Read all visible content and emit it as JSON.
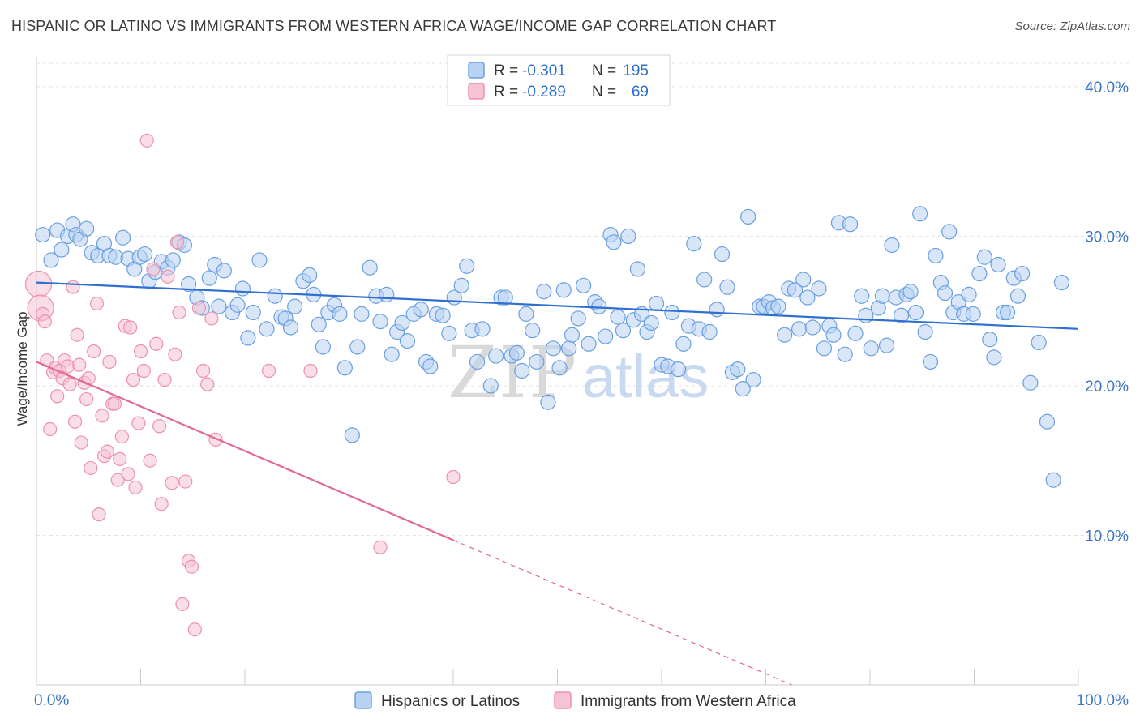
{
  "title": "HISPANIC OR LATINO VS IMMIGRANTS FROM WESTERN AFRICA WAGE/INCOME GAP CORRELATION CHART",
  "source": "Source: ZipAtlas.com",
  "watermark": {
    "zip": "ZIP",
    "atlas": "atlas"
  },
  "chart_data": {
    "type": "scatter",
    "title": "HISPANIC OR LATINO VS IMMIGRANTS FROM WESTERN AFRICA WAGE/INCOME GAP CORRELATION CHART",
    "xlabel": "",
    "ylabel": "Wage/Income Gap",
    "xlim": [
      0,
      100
    ],
    "ylim": [
      0,
      42
    ],
    "x_tick_labels": {
      "min": "0.0%",
      "max": "100.0%"
    },
    "y_ticks": [
      {
        "value": 10,
        "label": "10.0%"
      },
      {
        "value": 20,
        "label": "20.0%"
      },
      {
        "value": 30,
        "label": "30.0%"
      },
      {
        "value": 40,
        "label": "40.0%"
      }
    ],
    "grid": true,
    "legend_placement": "top-center",
    "legend": [
      {
        "r_label": "R =",
        "r_value": "-0.301",
        "n_label": "N =",
        "n_value": "195"
      },
      {
        "r_label": "R =",
        "r_value": "-0.289",
        "n_label": "N =",
        "n_value": "69"
      }
    ],
    "series": [
      {
        "name": "Hispanics or Latinos",
        "color": "#6aa0e0",
        "fill": "#b8d2f3",
        "trend_color": "#2f6fd0",
        "trend": {
          "x_start": 0,
          "y_start": 26.9,
          "x_end": 100,
          "y_end": 23.8,
          "dashed_from": null
        },
        "points": [
          [
            0.6,
            30.1
          ],
          [
            1.4,
            28.4
          ],
          [
            2.0,
            30.4
          ],
          [
            2.4,
            29.1
          ],
          [
            3.0,
            30.0
          ],
          [
            3.5,
            30.8
          ],
          [
            3.8,
            30.1
          ],
          [
            4.2,
            29.8
          ],
          [
            4.8,
            30.5
          ],
          [
            5.3,
            28.9
          ],
          [
            5.9,
            28.7
          ],
          [
            6.5,
            29.5
          ],
          [
            7.0,
            28.7
          ],
          [
            7.6,
            28.6
          ],
          [
            8.3,
            29.9
          ],
          [
            8.8,
            28.5
          ],
          [
            9.4,
            27.8
          ],
          [
            9.9,
            28.6
          ],
          [
            10.4,
            28.8
          ],
          [
            10.8,
            27.0
          ],
          [
            11.4,
            27.6
          ],
          [
            12.0,
            28.3
          ],
          [
            12.6,
            27.9
          ],
          [
            13.1,
            28.4
          ],
          [
            13.7,
            29.6
          ],
          [
            14.2,
            29.4
          ],
          [
            14.6,
            26.8
          ],
          [
            15.4,
            25.9
          ],
          [
            15.9,
            25.2
          ],
          [
            16.6,
            27.2
          ],
          [
            17.1,
            28.1
          ],
          [
            17.5,
            25.3
          ],
          [
            18.0,
            27.7
          ],
          [
            18.8,
            24.9
          ],
          [
            19.3,
            25.4
          ],
          [
            19.8,
            26.5
          ],
          [
            20.3,
            23.2
          ],
          [
            20.8,
            24.9
          ],
          [
            21.4,
            28.4
          ],
          [
            22.1,
            23.8
          ],
          [
            22.9,
            26.0
          ],
          [
            23.5,
            24.6
          ],
          [
            23.9,
            24.5
          ],
          [
            24.4,
            23.9
          ],
          [
            24.8,
            25.3
          ],
          [
            25.6,
            27.0
          ],
          [
            26.2,
            27.4
          ],
          [
            26.6,
            26.1
          ],
          [
            27.1,
            24.1
          ],
          [
            27.5,
            22.6
          ],
          [
            28.0,
            24.9
          ],
          [
            28.6,
            25.4
          ],
          [
            29.1,
            24.8
          ],
          [
            29.6,
            21.2
          ],
          [
            30.3,
            16.7
          ],
          [
            30.8,
            22.6
          ],
          [
            31.2,
            24.8
          ],
          [
            32.0,
            27.9
          ],
          [
            32.6,
            26.0
          ],
          [
            33.0,
            24.3
          ],
          [
            33.6,
            26.1
          ],
          [
            34.1,
            22.1
          ],
          [
            34.6,
            23.6
          ],
          [
            35.1,
            24.2
          ],
          [
            35.6,
            23.0
          ],
          [
            36.2,
            24.8
          ],
          [
            36.9,
            25.1
          ],
          [
            37.4,
            21.6
          ],
          [
            37.8,
            21.3
          ],
          [
            38.4,
            24.8
          ],
          [
            39.0,
            24.7
          ],
          [
            39.6,
            23.5
          ],
          [
            40.1,
            25.9
          ],
          [
            40.8,
            26.7
          ],
          [
            41.3,
            28.0
          ],
          [
            41.8,
            23.7
          ],
          [
            42.3,
            21.6
          ],
          [
            42.8,
            23.8
          ],
          [
            43.6,
            20.0
          ],
          [
            44.1,
            22.0
          ],
          [
            44.6,
            25.9
          ],
          [
            45.0,
            25.9
          ],
          [
            45.6,
            22.0
          ],
          [
            46.1,
            22.2
          ],
          [
            46.6,
            21.0
          ],
          [
            47.0,
            24.8
          ],
          [
            47.6,
            23.7
          ],
          [
            48.0,
            21.6
          ],
          [
            48.7,
            26.3
          ],
          [
            49.1,
            18.9
          ],
          [
            49.6,
            22.5
          ],
          [
            50.2,
            21.2
          ],
          [
            50.6,
            26.4
          ],
          [
            51.1,
            22.5
          ],
          [
            51.4,
            23.4
          ],
          [
            52.0,
            24.5
          ],
          [
            52.5,
            26.7
          ],
          [
            53.0,
            22.8
          ],
          [
            53.6,
            25.6
          ],
          [
            54.0,
            25.3
          ],
          [
            54.6,
            23.3
          ],
          [
            55.1,
            30.1
          ],
          [
            55.4,
            29.6
          ],
          [
            55.8,
            24.6
          ],
          [
            56.3,
            23.7
          ],
          [
            56.8,
            30.0
          ],
          [
            57.3,
            24.4
          ],
          [
            57.7,
            27.8
          ],
          [
            58.1,
            24.8
          ],
          [
            58.6,
            23.6
          ],
          [
            59.0,
            24.2
          ],
          [
            59.5,
            25.5
          ],
          [
            60.0,
            21.4
          ],
          [
            60.6,
            21.3
          ],
          [
            61.0,
            24.9
          ],
          [
            61.6,
            21.1
          ],
          [
            62.1,
            22.8
          ],
          [
            62.6,
            24.0
          ],
          [
            63.1,
            29.5
          ],
          [
            63.6,
            23.8
          ],
          [
            64.1,
            27.1
          ],
          [
            64.6,
            23.6
          ],
          [
            65.3,
            25.1
          ],
          [
            65.8,
            28.8
          ],
          [
            66.3,
            26.6
          ],
          [
            66.8,
            20.9
          ],
          [
            67.3,
            21.1
          ],
          [
            67.8,
            19.8
          ],
          [
            68.3,
            31.3
          ],
          [
            68.8,
            20.4
          ],
          [
            69.4,
            25.3
          ],
          [
            69.8,
            25.3
          ],
          [
            70.3,
            25.6
          ],
          [
            70.7,
            25.2
          ],
          [
            71.2,
            25.3
          ],
          [
            71.8,
            23.4
          ],
          [
            72.2,
            26.5
          ],
          [
            72.8,
            26.4
          ],
          [
            73.2,
            23.8
          ],
          [
            73.6,
            27.1
          ],
          [
            74.0,
            25.9
          ],
          [
            74.5,
            23.9
          ],
          [
            75.1,
            26.5
          ],
          [
            75.6,
            22.5
          ],
          [
            76.1,
            24.0
          ],
          [
            76.5,
            23.4
          ],
          [
            77.0,
            30.9
          ],
          [
            77.6,
            22.1
          ],
          [
            78.1,
            30.8
          ],
          [
            78.6,
            23.5
          ],
          [
            79.2,
            26.0
          ],
          [
            79.6,
            24.7
          ],
          [
            80.1,
            22.5
          ],
          [
            80.8,
            25.2
          ],
          [
            81.2,
            26.0
          ],
          [
            81.6,
            22.7
          ],
          [
            82.1,
            29.4
          ],
          [
            82.5,
            25.9
          ],
          [
            83.0,
            24.7
          ],
          [
            83.5,
            26.1
          ],
          [
            83.9,
            26.3
          ],
          [
            84.4,
            24.9
          ],
          [
            84.8,
            31.5
          ],
          [
            85.3,
            23.6
          ],
          [
            85.8,
            21.6
          ],
          [
            86.3,
            28.7
          ],
          [
            86.8,
            26.9
          ],
          [
            87.2,
            26.2
          ],
          [
            87.6,
            30.3
          ],
          [
            88.0,
            24.9
          ],
          [
            88.5,
            25.6
          ],
          [
            89.0,
            24.8
          ],
          [
            89.5,
            26.1
          ],
          [
            89.9,
            24.8
          ],
          [
            90.5,
            27.5
          ],
          [
            91.0,
            28.6
          ],
          [
            91.5,
            23.1
          ],
          [
            91.9,
            21.9
          ],
          [
            92.3,
            28.1
          ],
          [
            92.8,
            24.9
          ],
          [
            93.2,
            24.9
          ],
          [
            93.8,
            27.2
          ],
          [
            94.2,
            26.0
          ],
          [
            94.6,
            27.5
          ],
          [
            95.4,
            20.2
          ],
          [
            96.2,
            22.9
          ],
          [
            97.0,
            17.6
          ],
          [
            97.6,
            13.7
          ],
          [
            98.4,
            26.9
          ]
        ]
      },
      {
        "name": "Immigrants from Western Africa",
        "color": "#ee90b0",
        "fill": "#f6c3d4",
        "trend_color": "#e0699a",
        "trend": {
          "x_start": 0,
          "y_start": 21.6,
          "x_end": 72.5,
          "y_end": 0,
          "dashed_from": 40
        },
        "points": [
          [
            0.2,
            26.8
          ],
          [
            0.4,
            25.2
          ],
          [
            0.6,
            24.8
          ],
          [
            0.8,
            24.3
          ],
          [
            1.0,
            21.7
          ],
          [
            1.3,
            17.1
          ],
          [
            1.6,
            20.9
          ],
          [
            1.8,
            21.2
          ],
          [
            2.0,
            19.3
          ],
          [
            2.2,
            21.0
          ],
          [
            2.5,
            20.5
          ],
          [
            2.7,
            21.7
          ],
          [
            3.0,
            21.3
          ],
          [
            3.2,
            20.1
          ],
          [
            3.5,
            26.6
          ],
          [
            3.7,
            17.6
          ],
          [
            3.9,
            23.4
          ],
          [
            4.1,
            21.4
          ],
          [
            4.3,
            16.2
          ],
          [
            4.6,
            20.2
          ],
          [
            4.8,
            19.1
          ],
          [
            5.0,
            20.5
          ],
          [
            5.2,
            14.5
          ],
          [
            5.5,
            22.3
          ],
          [
            5.8,
            25.5
          ],
          [
            6.0,
            11.4
          ],
          [
            6.3,
            18.0
          ],
          [
            6.5,
            15.3
          ],
          [
            6.8,
            15.6
          ],
          [
            7.0,
            21.6
          ],
          [
            7.3,
            18.8
          ],
          [
            7.5,
            18.8
          ],
          [
            7.8,
            13.7
          ],
          [
            8.0,
            15.1
          ],
          [
            8.2,
            16.6
          ],
          [
            8.5,
            24.0
          ],
          [
            8.8,
            14.1
          ],
          [
            9.0,
            23.9
          ],
          [
            9.3,
            20.4
          ],
          [
            9.5,
            13.2
          ],
          [
            9.8,
            17.5
          ],
          [
            10.0,
            22.3
          ],
          [
            10.3,
            21.0
          ],
          [
            10.6,
            36.4
          ],
          [
            10.9,
            15.0
          ],
          [
            11.2,
            27.8
          ],
          [
            11.5,
            22.8
          ],
          [
            11.8,
            17.3
          ],
          [
            12.0,
            12.1
          ],
          [
            12.3,
            20.4
          ],
          [
            12.6,
            27.3
          ],
          [
            13.0,
            13.5
          ],
          [
            13.3,
            22.1
          ],
          [
            13.5,
            29.6
          ],
          [
            13.7,
            24.9
          ],
          [
            14.0,
            5.4
          ],
          [
            14.3,
            13.6
          ],
          [
            14.6,
            8.3
          ],
          [
            14.9,
            7.9
          ],
          [
            15.2,
            3.7
          ],
          [
            15.6,
            25.2
          ],
          [
            16.0,
            21.0
          ],
          [
            16.4,
            20.1
          ],
          [
            16.8,
            24.5
          ],
          [
            17.2,
            16.4
          ],
          [
            22.3,
            21.0
          ],
          [
            26.3,
            21.0
          ],
          [
            33.0,
            9.2
          ],
          [
            40.0,
            13.9
          ]
        ]
      }
    ]
  },
  "bottom_legend": [
    {
      "label": "Hispanics or Latinos"
    },
    {
      "label": "Immigrants from Western Africa"
    }
  ]
}
